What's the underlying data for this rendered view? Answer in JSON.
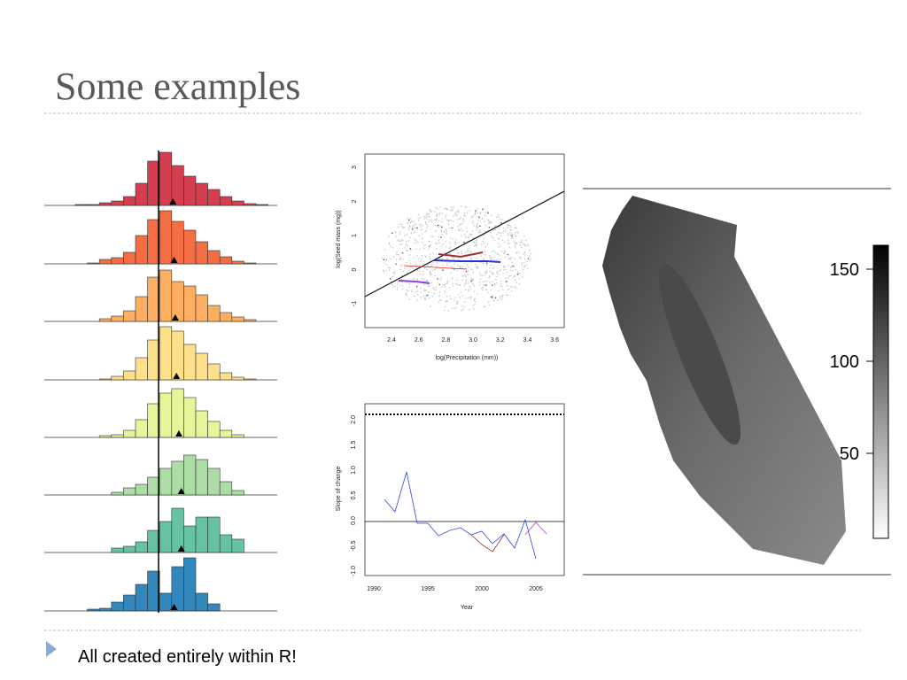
{
  "header": {
    "title": "Some examples"
  },
  "figures": {
    "histograms": {
      "panels": [
        {
          "color": "#d53e4f",
          "counts": [
            1,
            1,
            3,
            5,
            10,
            25,
            50,
            60,
            45,
            33,
            25,
            18,
            10,
            5,
            2,
            1
          ],
          "marker": 8.1
        },
        {
          "color": "#f46d43",
          "counts": [
            0,
            1,
            5,
            7,
            13,
            32,
            50,
            60,
            48,
            38,
            25,
            15,
            8,
            3,
            1,
            0
          ],
          "marker": 8.2
        },
        {
          "color": "#fdae61",
          "counts": [
            0,
            0,
            3,
            6,
            12,
            28,
            50,
            58,
            45,
            40,
            30,
            18,
            10,
            5,
            2,
            0
          ],
          "marker": 8.3
        },
        {
          "color": "#fee08b",
          "counts": [
            0,
            0,
            1,
            4,
            10,
            25,
            45,
            60,
            55,
            40,
            30,
            18,
            8,
            3,
            1,
            0
          ],
          "marker": 8.4
        },
        {
          "color": "#e6f598",
          "counts": [
            0,
            0,
            2,
            3,
            8,
            20,
            38,
            50,
            55,
            45,
            30,
            18,
            8,
            3,
            0,
            0
          ],
          "marker": 8.6
        },
        {
          "color": "#abdda4",
          "counts": [
            0,
            0,
            0,
            3,
            8,
            12,
            20,
            30,
            38,
            45,
            40,
            30,
            15,
            5,
            0,
            0
          ],
          "marker": 8.8
        },
        {
          "color": "#66c2a5",
          "counts": [
            0,
            0,
            0,
            5,
            7,
            12,
            25,
            35,
            50,
            30,
            40,
            40,
            20,
            15,
            0,
            0
          ],
          "marker": 8.8
        },
        {
          "color": "#3288bd",
          "counts": [
            0,
            2,
            3,
            10,
            18,
            30,
            45,
            20,
            50,
            60,
            20,
            8,
            0,
            0,
            0,
            0
          ],
          "marker": 8.2
        }
      ]
    },
    "scatter": {
      "x_label": "log(Precipitation (mm))",
      "y_label": "log(Seed mass (mg))",
      "x_ticks": [
        "2.4",
        "2.6",
        "2.8",
        "3.0",
        "3.2",
        "3.4",
        "3.6"
      ],
      "y_ticks": [
        "-1",
        "0",
        "1",
        "2",
        "3"
      ]
    },
    "timeseries": {
      "x_label": "Year",
      "y_label": "Slope of change",
      "x_ticks": [
        "1990",
        "1995",
        "2000",
        "2005"
      ],
      "y_ticks": [
        "-1.0",
        "-0.5",
        "0.0",
        "0.5",
        "1.0",
        "1.5",
        "2.0"
      ]
    },
    "map": {
      "colorbar_ticks": [
        "50",
        "100",
        "150"
      ]
    }
  },
  "bullets": [
    "All created entirely within R!"
  ]
}
